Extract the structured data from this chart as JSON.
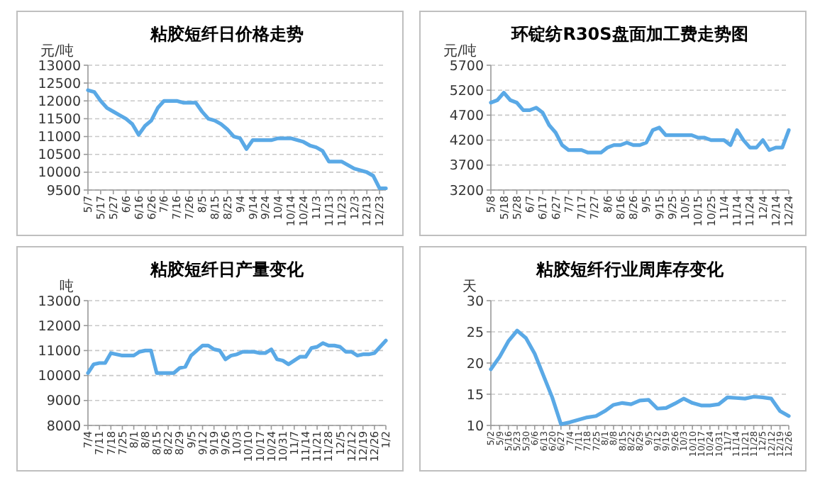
{
  "chart_data": [
    {
      "type": "line",
      "title": "粘胶短纤日价格走势",
      "ylabel": "元/吨",
      "color": "#5aa9e6",
      "grid": "y",
      "ylim": [
        9500,
        13000
      ],
      "yticks": [
        9500,
        10000,
        10500,
        11000,
        11500,
        12000,
        12500,
        13000
      ],
      "categories": [
        "5/7",
        null,
        "5/17",
        null,
        "5/27",
        null,
        "6/6",
        null,
        "6/16",
        null,
        "6/26",
        null,
        "7/6",
        null,
        "7/16",
        null,
        "7/26",
        null,
        "8/5",
        null,
        "8/15",
        null,
        "8/25",
        null,
        "9/4",
        null,
        "9/14",
        null,
        "9/24",
        null,
        "10/4",
        null,
        "10/14",
        null,
        "10/24",
        null,
        "11/3",
        null,
        "11/13",
        null,
        "11/23",
        null,
        "12/3",
        null,
        "12/13",
        null,
        "12/23",
        null
      ],
      "values": [
        12300,
        12250,
        12000,
        11800,
        11700,
        11600,
        11500,
        11350,
        11050,
        11300,
        11450,
        11800,
        12000,
        12000,
        12000,
        11950,
        11950,
        11950,
        11700,
        11500,
        11450,
        11350,
        11200,
        11000,
        10950,
        10650,
        10900,
        10900,
        10900,
        10900,
        10950,
        10950,
        10950,
        10900,
        10850,
        10750,
        10700,
        10600,
        10300,
        10300,
        10300,
        10200,
        10100,
        10050,
        10000,
        9900,
        9550,
        9550
      ]
    },
    {
      "type": "line",
      "title": "环锭纺R30S盘面加工费走势图",
      "ylabel": "元/吨",
      "color": "#5aa9e6",
      "grid": "y",
      "ylim": [
        3200,
        5700
      ],
      "yticks": [
        3200,
        3700,
        4200,
        4700,
        5200,
        5700
      ],
      "categories": [
        "5/8",
        null,
        "5/18",
        null,
        "5/28",
        null,
        "6/7",
        null,
        "6/17",
        null,
        "6/27",
        null,
        "7/7",
        null,
        "7/17",
        null,
        "7/27",
        null,
        "8/6",
        null,
        "8/16",
        null,
        "8/26",
        null,
        "9/5",
        null,
        "9/15",
        null,
        "9/25",
        null,
        "10/5",
        null,
        "10/15",
        null,
        "10/25",
        null,
        "11/4",
        null,
        "11/14",
        null,
        "11/24",
        null,
        "12/4",
        null,
        "12/14",
        null,
        "12/24"
      ],
      "values": [
        4950,
        5000,
        5150,
        5000,
        4950,
        4800,
        4800,
        4850,
        4750,
        4500,
        4350,
        4100,
        4000,
        4000,
        4000,
        3950,
        3950,
        3950,
        4050,
        4100,
        4100,
        4150,
        4100,
        4100,
        4150,
        4400,
        4450,
        4300,
        4300,
        4300,
        4300,
        4300,
        4250,
        4250,
        4200,
        4200,
        4200,
        4100,
        4400,
        4200,
        4050,
        4050,
        4200,
        4000,
        4050,
        4050,
        4400
      ]
    },
    {
      "type": "line",
      "title": "粘胶短纤日产量变化",
      "ylabel": "吨",
      "color": "#5aa9e6",
      "grid": "y",
      "ylim": [
        8000,
        13000
      ],
      "yticks": [
        8000,
        9000,
        10000,
        11000,
        12000,
        13000
      ],
      "categories": [
        "7/4",
        null,
        "7/11",
        null,
        "7/18",
        null,
        "7/25",
        null,
        "8/1",
        null,
        "8/8",
        null,
        "8/15",
        null,
        "8/22",
        null,
        "8/29",
        null,
        "9/5",
        null,
        "9/12",
        null,
        "9/19",
        null,
        "9/26",
        null,
        "10/3",
        null,
        "10/10",
        null,
        "10/17",
        null,
        "10/24",
        null,
        "10/31",
        null,
        "11/7",
        null,
        "11/14",
        null,
        "11/21",
        null,
        "11/28",
        null,
        "12/5",
        null,
        "12/12",
        null,
        "12/19",
        null,
        "12/26",
        null,
        "1/2"
      ],
      "values": [
        10100,
        10450,
        10500,
        10500,
        10900,
        10850,
        10800,
        10800,
        10800,
        10950,
        11000,
        11000,
        10100,
        10100,
        10100,
        10100,
        10300,
        10350,
        10800,
        11000,
        11200,
        11200,
        11050,
        11000,
        10650,
        10800,
        10850,
        10950,
        10950,
        10950,
        10900,
        10900,
        11050,
        10650,
        10600,
        10450,
        10600,
        10750,
        10750,
        11100,
        11150,
        11300,
        11200,
        11200,
        11150,
        10950,
        10950,
        10800,
        10850,
        10850,
        10900,
        11150,
        11400
      ]
    },
    {
      "type": "line",
      "title": "粘胶短纤行业周库存变化",
      "ylabel": "天",
      "color": "#5aa9e6",
      "grid": "y",
      "ylim": [
        10,
        30
      ],
      "yticks": [
        10,
        15,
        20,
        25,
        30
      ],
      "categories": [
        "5/2",
        "5/9",
        "5/16",
        "5/23",
        "5/30",
        "6/6",
        "6/13",
        "6/20",
        "6/27",
        "7/4",
        "7/11",
        "7/18",
        "7/25",
        "8/1",
        "8/8",
        "8/15",
        "8/22",
        "8/29",
        "9/5",
        "9/12",
        "9/19",
        "9/26",
        "10/3",
        "10/10",
        "10/17",
        "10/24",
        "10/31",
        "11/7",
        "11/14",
        "11/21",
        "11/28",
        "12/5",
        "12/12",
        "12/19",
        "12/26"
      ],
      "values": [
        19,
        21,
        23.5,
        25.2,
        24,
        21.5,
        18,
        14.5,
        10.2,
        10.5,
        10.9,
        11.3,
        11.5,
        12.3,
        13.3,
        13.6,
        13.4,
        14,
        14.1,
        12.7,
        12.8,
        13.5,
        14.3,
        13.6,
        13.2,
        13.2,
        13.4,
        14.5,
        14.4,
        14.3,
        14.6,
        14.5,
        14.3,
        12.3,
        11.5
      ]
    }
  ]
}
